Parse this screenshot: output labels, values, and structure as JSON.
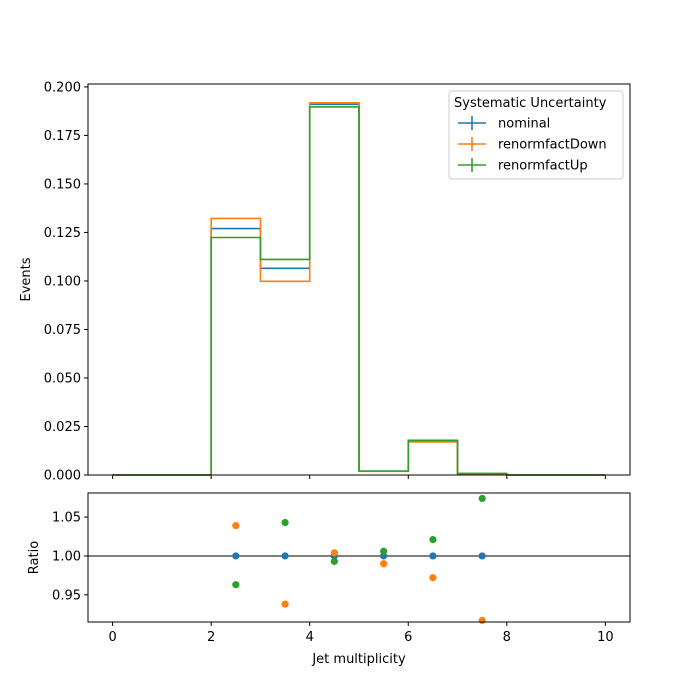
{
  "chart_data": {
    "type": "histogram-step-with-ratio",
    "x_label": "Jet multiplicity",
    "bin_edges": [
      0,
      1,
      2,
      3,
      4,
      5,
      6,
      7,
      8,
      9,
      10
    ],
    "top_panel": {
      "ylabel": "Events",
      "xlim": [
        -0.5,
        10.5
      ],
      "ylim": [
        0,
        0.2015
      ],
      "xticks": [
        0,
        2,
        4,
        6,
        8,
        10
      ],
      "yticks": [
        0.0,
        0.025,
        0.05,
        0.075,
        0.1,
        0.125,
        0.15,
        0.175,
        0.2
      ],
      "ytick_labels": [
        "0.000",
        "0.025",
        "0.050",
        "0.075",
        "0.100",
        "0.125",
        "0.150",
        "0.175",
        "0.200"
      ],
      "series": [
        {
          "name": "nominal",
          "color": "#1f77b4",
          "values": [
            0,
            0,
            0.127,
            0.1065,
            0.191,
            0.002,
            0.0175,
            0.0007,
            0,
            0
          ]
        },
        {
          "name": "renormfactDown",
          "color": "#ff7f0e",
          "values": [
            0,
            0,
            0.1322,
            0.0998,
            0.1918,
            0.0019,
            0.017,
            0.0006,
            0,
            0
          ]
        },
        {
          "name": "renormfactUp",
          "color": "#2ca02c",
          "values": [
            0,
            0,
            0.1224,
            0.1111,
            0.1897,
            0.002,
            0.0179,
            0.0008,
            0,
            0
          ]
        }
      ],
      "legend": {
        "title": "Systematic Uncertainty",
        "location": "upper right"
      }
    },
    "ratio_panel": {
      "ylabel": "Ratio",
      "xlim": [
        -0.5,
        10.5
      ],
      "ylim": [
        0.915,
        1.081
      ],
      "yticks": [
        0.95,
        1.0,
        1.05
      ],
      "ytick_labels": [
        "0.95",
        "1.00",
        "1.05"
      ],
      "reference_line": 1.0,
      "x": [
        2.5,
        3.5,
        4.5,
        5.5,
        6.5,
        7.5
      ],
      "series": [
        {
          "name": "nominal",
          "color": "#1f77b4",
          "values": [
            1.0,
            1.0,
            1.0,
            1.0,
            1.0,
            1.0
          ]
        },
        {
          "name": "renormfactDown",
          "color": "#ff7f0e",
          "values": [
            1.039,
            0.938,
            1.004,
            0.99,
            0.972,
            0.917
          ]
        },
        {
          "name": "renormfactUp",
          "color": "#2ca02c",
          "values": [
            0.963,
            1.043,
            0.993,
            1.006,
            1.021,
            1.074
          ]
        }
      ]
    },
    "xtick_labels": [
      "0",
      "2",
      "4",
      "6",
      "8",
      "10"
    ]
  }
}
